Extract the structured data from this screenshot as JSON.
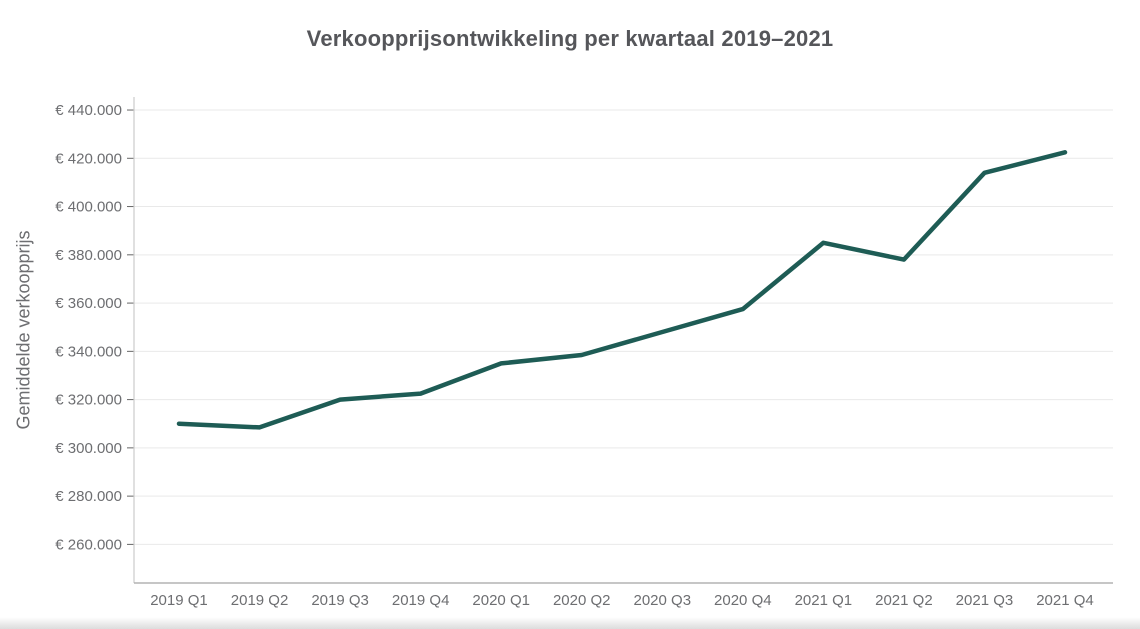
{
  "chart_data": {
    "type": "line",
    "title": "Verkoopprijsontwikkeling per kwartaal 2019–2021",
    "xlabel": "",
    "ylabel": "Gemiddelde verkoopprijs",
    "categories": [
      "2019 Q1",
      "2019 Q2",
      "2019 Q3",
      "2019 Q4",
      "2020 Q1",
      "2020 Q2",
      "2020 Q3",
      "2020 Q4",
      "2021 Q1",
      "2021 Q2",
      "2021 Q3",
      "2021 Q4"
    ],
    "series": [
      {
        "name": "Gemiddelde verkoopprijs",
        "values": [
          310000,
          308500,
          320000,
          322500,
          335000,
          338500,
          348000,
          357500,
          385000,
          378000,
          414000,
          422500
        ]
      }
    ],
    "ylim": [
      244000,
      445400
    ],
    "yticks": [
      260000,
      280000,
      300000,
      320000,
      340000,
      360000,
      380000,
      400000,
      420000,
      440000
    ],
    "ytick_labels": [
      "€ 260.000",
      "€ 280.000",
      "€ 300.000",
      "€ 320.000",
      "€ 340.000",
      "€ 360.000",
      "€ 380.000",
      "€ 400.000",
      "€ 420.000",
      "€ 440.000"
    ],
    "grid": "horizontal",
    "legend": "none",
    "colors": {
      "line": "#1e5c55",
      "grid": "#e9e9e9",
      "y_axis": "#cccccc",
      "x_axis": "#b3b3b3",
      "tick": "#666666",
      "tick_label": "#6d6e71",
      "title": "#55565a",
      "background": "#ffffff"
    }
  }
}
